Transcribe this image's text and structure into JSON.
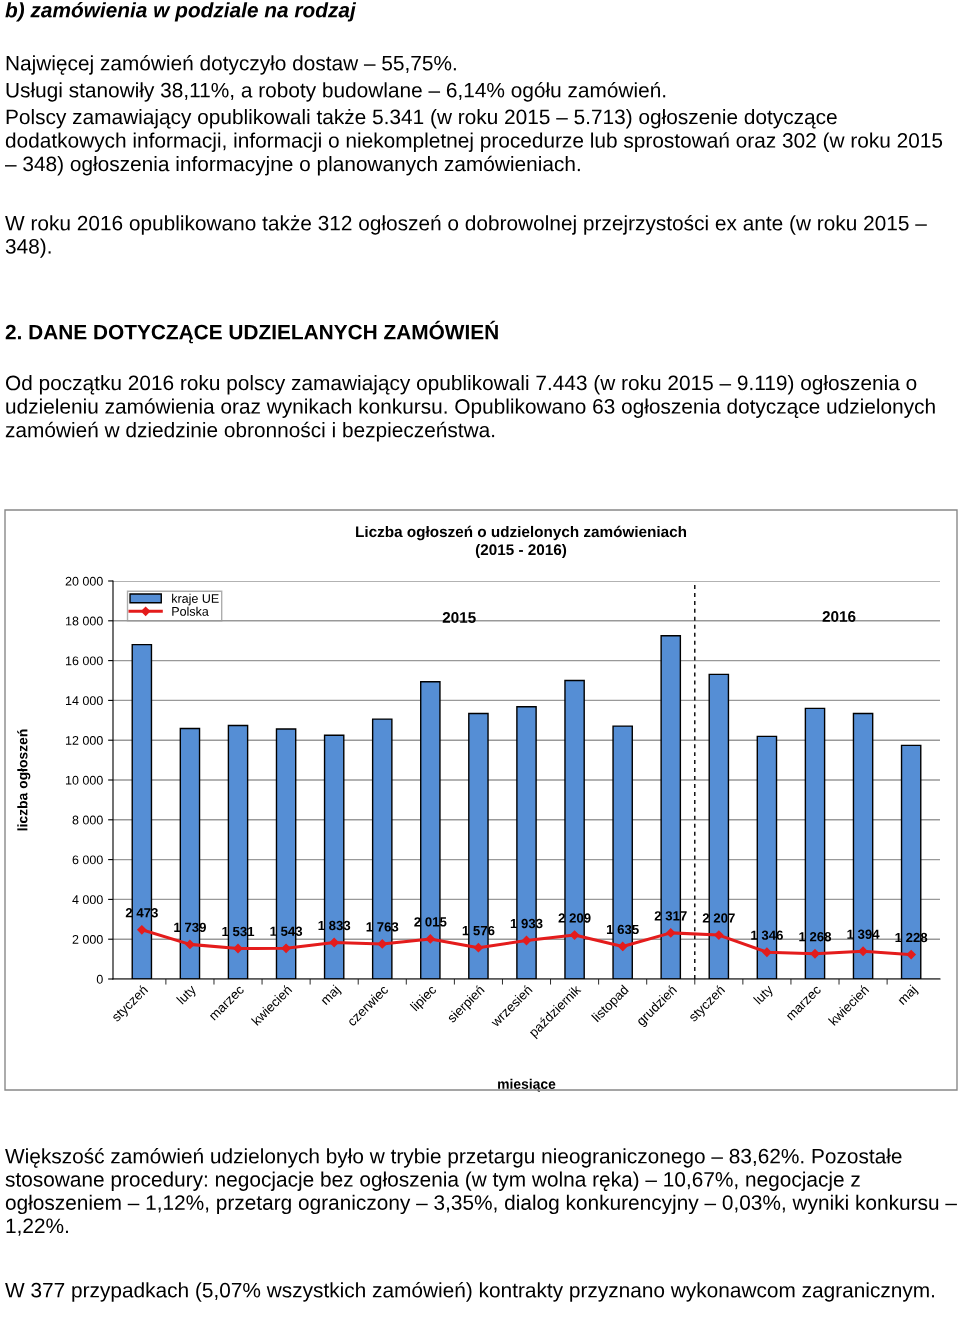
{
  "chart_data": {
    "type": "bar",
    "title": "Liczba ogłoszeń o udzielonych zamówieniach",
    "subtitle": "(2015 - 2016)",
    "xlabel": "miesiące",
    "ylabel": "liczba ogłoszeń",
    "categories": [
      "styczeń",
      "luty",
      "marzec",
      "kwiecień",
      "maj",
      "czerwiec",
      "lipiec",
      "sierpień",
      "wrzesień",
      "październik",
      "listopad",
      "grudzień",
      "styczeń",
      "luty",
      "marzec",
      "kwiecień",
      "maj"
    ],
    "series": [
      {
        "name": "kraje UE",
        "color": "#558ed5",
        "values": [
          16800,
          12590,
          12740,
          12560,
          12250,
          13060,
          14940,
          13340,
          13680,
          15000,
          12710,
          17250,
          15310,
          12190,
          13600,
          13340,
          11740
        ]
      },
      {
        "name": "Polska",
        "type": "line",
        "color": "#e41c1c",
        "marker": "diamond",
        "values": [
          2473,
          1739,
          1531,
          1543,
          1833,
          1763,
          2015,
          1576,
          1933,
          2209,
          1635,
          2317,
          2207,
          1346,
          1268,
          1394,
          1228
        ],
        "value_labels": [
          "2 473",
          "1 739",
          "1 531",
          "1 543",
          "1 833",
          "1 763",
          "2 015",
          "1 576",
          "1 933",
          "2 209",
          "1 635",
          "2 317",
          "2 207",
          "1 346",
          "1 268",
          "1 394",
          "1 228"
        ]
      }
    ],
    "ylim": [
      0,
      20000
    ],
    "yticks": [
      0,
      {
        "value": 2000,
        "label": "2 000"
      },
      {
        "value": 4000,
        "label": "4 000"
      },
      {
        "value": 6000,
        "label": "6 000"
      },
      {
        "value": 8000,
        "label": "8 000"
      },
      {
        "value": 10000,
        "label": "10 000"
      },
      {
        "value": 12000,
        "label": "12 000"
      },
      {
        "value": 14000,
        "label": "14 000"
      },
      {
        "value": 16000,
        "label": "16 000"
      },
      {
        "value": 18000,
        "label": "18 000"
      },
      {
        "value": 20000,
        "label": "20 000"
      }
    ],
    "grid": "y",
    "legend": "top left",
    "annotations": [
      "b) zamówienia w podziale na rodzaj",
      "Najwięcej zamówień dotyczyło dostaw – 55,75%.",
      "Usługi stanowiły 38,11%, a roboty budowlane – 6,14% ogółu zamówień.",
      "Polscy zamawiający opublikowali także 5.341 (w roku 2015 – 5.713) ogłoszenie dotyczące dodatkowych informacji, informacji o niekompletnej procedurze lub sprostowań oraz 302 (w roku 2015 – 348) ogłoszenia informacyjne o planowanych zamówieniach.",
      "W roku 2016 opublikowano także 312 ogłoszeń o dobrowolnej przejrzystości ex ante (w roku 2015 – 348).",
      "2. DANE DOTYCZĄCE UDZIELANYCH ZAMÓWIEŃ",
      "Od początku 2016 roku polscy zamawiający opublikowali 7.443 (w roku 2015 – 9.119) ogłoszenia o udzieleniu zamówienia oraz wynikach konkursu. Opublikowano 63 ogłoszenia dotyczące udzielonych zamówień w dziedzinie obronności i bezpieczeństwa.",
      "2015",
      "2016",
      "Większość zamówień udzielonych było w trybie przetargu nieograniczonego – 83,62%. Pozostałe stosowane procedury: negocjacje bez ogłoszenia (w tym wolna ręka) – 10,67%, negocjacje z ogłoszeniem – 1,12%, przetarg ograniczony – 3,35%, dialog konkurencyjny – 0,03%, wyniki konkursu – 1,22%.",
      "W 377 przypadkach (5,07% wszystkich zamówień) kontrakty przyznano wykonawcom zagranicznym."
    ]
  }
}
